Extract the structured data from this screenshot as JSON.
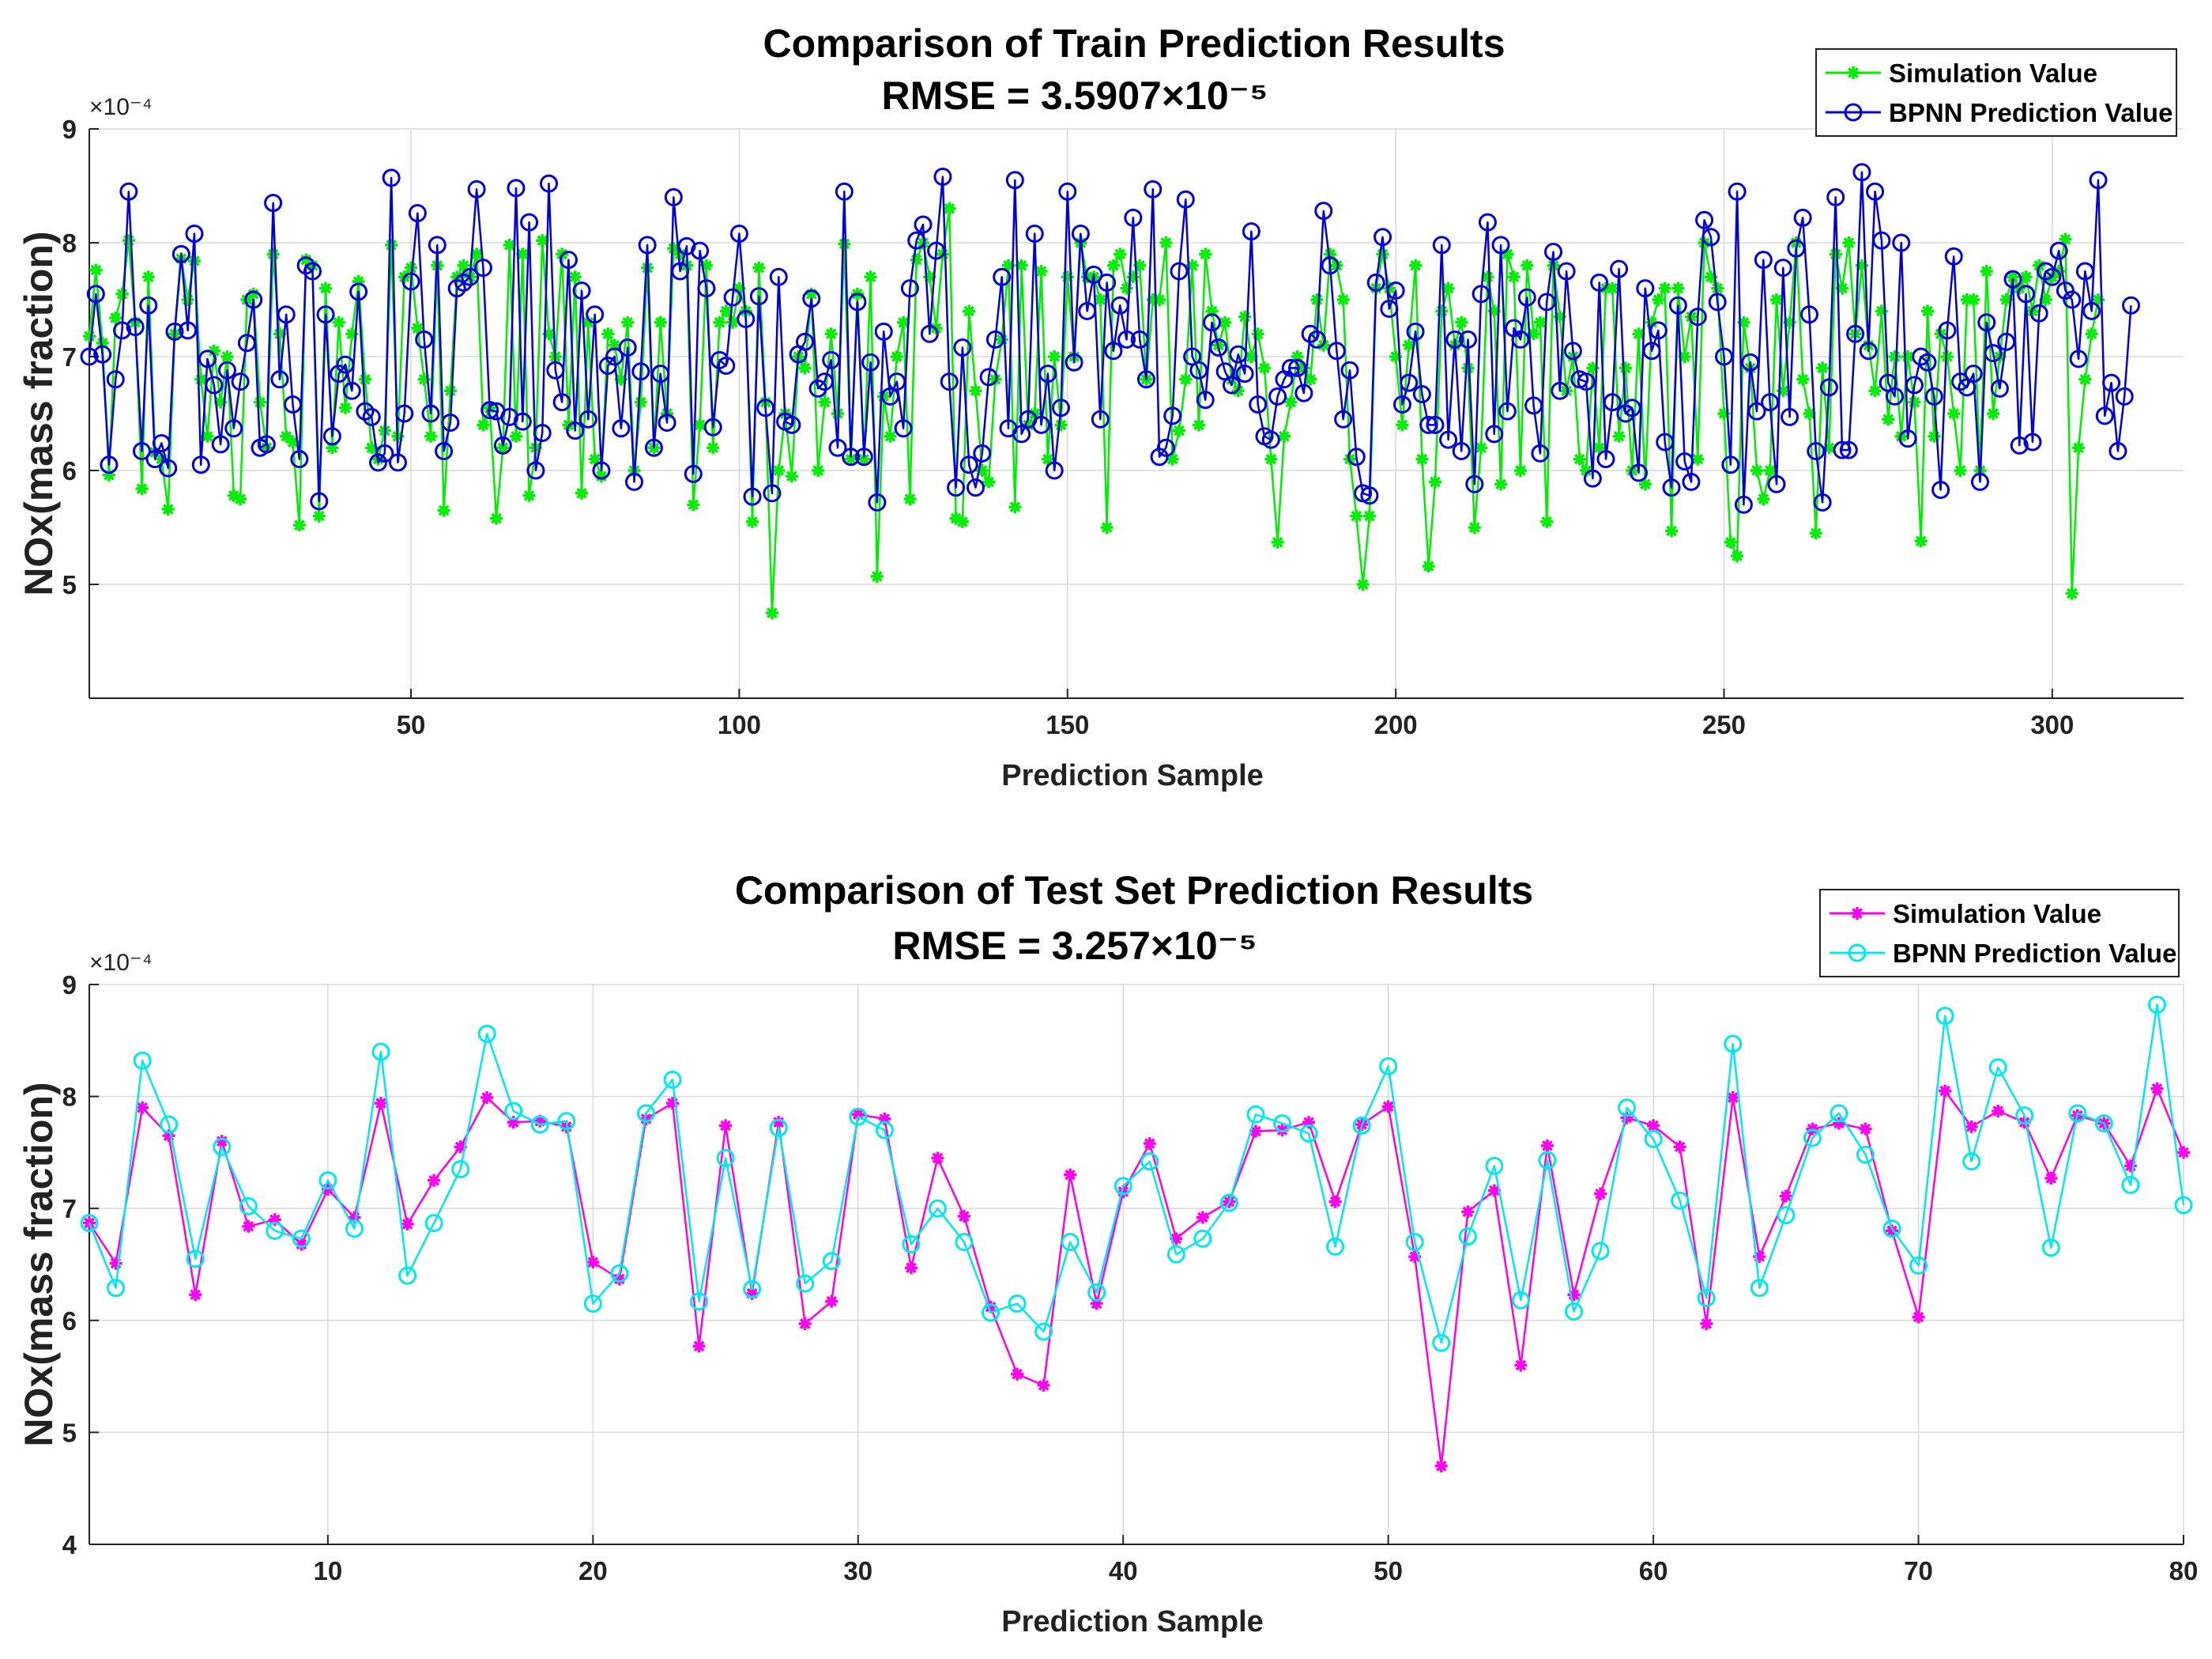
{
  "chart_data": [
    {
      "type": "line",
      "title": "Comparison of Train Prediction Results",
      "rmse_label": "RMSE =",
      "rmse_value": "3.5907×10⁻⁵",
      "xlabel": "Prediction Sample",
      "ylabel": "NOx(mass fraction)",
      "y_exponent": "×10⁻⁴",
      "xlim": [
        1,
        320
      ],
      "ylim": [
        4,
        9
      ],
      "xticks": [
        50,
        100,
        150,
        200,
        250,
        300
      ],
      "yticks": [
        5,
        6,
        7,
        8,
        9
      ],
      "grid": true,
      "legend": "top-right",
      "series": [
        {
          "name": "Simulation Value",
          "color": "#00ee00",
          "marker": "star",
          "values": [
            7.18,
            7.76,
            7.12,
            5.96,
            7.34,
            7.55,
            8.02,
            7.3,
            5.84,
            7.7,
            6.16,
            6.1,
            5.66,
            7.2,
            7.86,
            7.5,
            7.84,
            6.8,
            6.3,
            7.05,
            6.6,
            7.0,
            5.78,
            5.75,
            7.5,
            7.55,
            6.6,
            6.2,
            7.9,
            7.2,
            6.3,
            6.25,
            5.52,
            7.85,
            7.8,
            5.6,
            7.6,
            6.2,
            7.3,
            6.55,
            7.2,
            7.66,
            6.8,
            6.2,
            6.1,
            6.35,
            7.98,
            6.3,
            7.7,
            7.78,
            7.25,
            6.8,
            6.3,
            7.8,
            5.65,
            6.7,
            7.7,
            7.8,
            7.7,
            7.9,
            6.4,
            6.55,
            5.58,
            6.2,
            7.98,
            6.3,
            7.9,
            5.78,
            6.2,
            8.02,
            7.2,
            7.0,
            7.9,
            6.4,
            7.7,
            5.8,
            7.3,
            6.1,
            5.95,
            7.2,
            7.1,
            6.8,
            7.3,
            6.0,
            6.6,
            7.78,
            6.2,
            7.3,
            6.5,
            7.95,
            7.9,
            7.8,
            5.7,
            6.4,
            7.8,
            6.2,
            7.3,
            7.4,
            7.3,
            7.6,
            7.4,
            5.55,
            7.78,
            6.6,
            4.75,
            6.0,
            6.5,
            5.95,
            7.0,
            6.9,
            7.55,
            6.0,
            6.6,
            7.2,
            6.5,
            7.99,
            6.1,
            7.55,
            6.1,
            7.7,
            5.07,
            6.65,
            6.3,
            7.0,
            7.3,
            5.75,
            7.85,
            8.0,
            7.7,
            7.25,
            7.9,
            8.3,
            5.58,
            5.55,
            7.4,
            6.7,
            6.0,
            5.9,
            6.8,
            7.15,
            7.8,
            5.68,
            7.8,
            6.4,
            6.5,
            7.75,
            6.1,
            7.0,
            6.4,
            7.7,
            7.0,
            8.0,
            7.7,
            7.7,
            7.5,
            5.5,
            7.8,
            7.9,
            7.6,
            7.7,
            7.8,
            6.8,
            7.5,
            7.5,
            8.0,
            6.1,
            6.35,
            6.8,
            7.8,
            6.4,
            7.9,
            7.4,
            7.1,
            7.3,
            6.8,
            6.7,
            7.35,
            7.0,
            7.2,
            6.9,
            6.1,
            5.37,
            6.3,
            6.6,
            7.0,
            6.9,
            6.8,
            7.5,
            7.1,
            7.9,
            7.8,
            7.5,
            6.1,
            5.6,
            5.0,
            5.6,
            7.6,
            7.9,
            7.6,
            7.0,
            6.4,
            7.1,
            7.8,
            6.1,
            5.16,
            5.9,
            7.4,
            7.6,
            7.1,
            7.3,
            6.9,
            5.5,
            6.2,
            7.7,
            7.4,
            5.88,
            7.9,
            7.7,
            6.0,
            7.8,
            7.2,
            7.3,
            5.55,
            7.8,
            7.35,
            6.7,
            7.0,
            6.1,
            6.0,
            6.9,
            6.2,
            7.6,
            7.6,
            6.3,
            6.9,
            6.0,
            7.2,
            5.88,
            7.3,
            7.5,
            7.6,
            5.47,
            7.6,
            7.0,
            7.35,
            6.1,
            8.0,
            7.7,
            7.6,
            6.5,
            5.37,
            5.25,
            7.3,
            6.9,
            6.0,
            5.75,
            6.0,
            7.5,
            6.7,
            7.3,
            8.0,
            6.8,
            6.5,
            5.45,
            6.9,
            6.2,
            7.9,
            7.6,
            8.0,
            7.2,
            7.8,
            7.1,
            6.7,
            7.4,
            6.45,
            7.0,
            6.3,
            7.0,
            6.6,
            5.38,
            7.4,
            6.3,
            7.2,
            7.0,
            6.5,
            6.0,
            7.5,
            7.5,
            6.0,
            7.75,
            6.5,
            7.0,
            7.5,
            7.7,
            7.6,
            7.7,
            7.4,
            7.8,
            7.5,
            7.7,
            7.75,
            8.03,
            4.92,
            6.2,
            6.8,
            7.2,
            7.5
          ]
        },
        {
          "name": "BPNN Prediction Value",
          "color": "#0000dd",
          "marker": "circle",
          "values": [
            7.0,
            7.55,
            7.02,
            6.05,
            6.8,
            7.23,
            8.45,
            7.26,
            6.17,
            7.45,
            6.1,
            6.24,
            6.02,
            7.22,
            7.9,
            7.23,
            8.08,
            6.05,
            6.98,
            6.75,
            6.23,
            6.88,
            6.37,
            6.78,
            7.12,
            7.5,
            6.2,
            6.23,
            8.35,
            6.8,
            7.37,
            6.58,
            6.1,
            7.8,
            7.75,
            5.73,
            7.37,
            6.3,
            6.85,
            6.93,
            6.7,
            7.57,
            6.52,
            6.47,
            6.07,
            6.15,
            8.57,
            6.07,
            6.5,
            7.66,
            8.26,
            7.15,
            6.5,
            7.98,
            6.17,
            6.42,
            7.6,
            7.65,
            7.7,
            8.47,
            7.78,
            6.53,
            6.52,
            6.22,
            6.47,
            8.48,
            6.43,
            8.18,
            6.0,
            6.33,
            8.52,
            6.88,
            6.6,
            7.85,
            6.35,
            7.58,
            6.45,
            7.37,
            6.0,
            6.92,
            7.0,
            6.37,
            7.08,
            5.9,
            6.87,
            7.98,
            6.2,
            6.85,
            6.42,
            8.4,
            7.75,
            7.97,
            5.97,
            7.93,
            7.6,
            6.38,
            6.97,
            6.92,
            7.52,
            8.08,
            7.33,
            5.77,
            7.53,
            6.55,
            5.8,
            7.7,
            6.43,
            6.4,
            7.02,
            7.13,
            7.51,
            6.72,
            6.78,
            6.97,
            6.2,
            8.45,
            6.12,
            7.48,
            6.12,
            6.95,
            5.72,
            7.22,
            6.65,
            6.78,
            6.37,
            7.6,
            8.02,
            8.16,
            7.2,
            7.93,
            8.58,
            6.78,
            5.85,
            7.08,
            6.05,
            5.85,
            6.15,
            6.82,
            7.15,
            7.7,
            6.37,
            8.55,
            6.32,
            6.45,
            8.08,
            6.4,
            6.85,
            6.0,
            6.55,
            8.45,
            6.95,
            8.08,
            7.4,
            7.72,
            6.45,
            7.65,
            7.05,
            7.45,
            7.15,
            8.22,
            7.15,
            6.8,
            8.47,
            6.12,
            6.2,
            6.48,
            7.75,
            8.38,
            7.0,
            6.88,
            6.62,
            7.3,
            7.08,
            6.87,
            6.75,
            7.02,
            6.85,
            8.1,
            6.58,
            6.3,
            6.27,
            6.65,
            6.8,
            6.9,
            6.9,
            6.68,
            7.2,
            7.15,
            8.28,
            7.8,
            7.05,
            6.45,
            6.88,
            6.12,
            5.8,
            5.78,
            7.65,
            8.05,
            7.42,
            7.58,
            6.58,
            6.77,
            7.22,
            6.67,
            6.4,
            6.4,
            7.98,
            6.27,
            7.15,
            6.17,
            7.15,
            5.88,
            7.55,
            8.18,
            6.32,
            7.98,
            6.52,
            7.25,
            7.15,
            7.52,
            6.57,
            6.15,
            7.48,
            7.92,
            6.7,
            7.75,
            7.05,
            6.8,
            6.78,
            5.93,
            7.65,
            6.1,
            6.6,
            7.77,
            6.5,
            6.55,
            5.98,
            7.6,
            7.05,
            7.23,
            6.25,
            5.85,
            7.45,
            6.08,
            5.9,
            7.35,
            8.2,
            8.05,
            7.48,
            7.0,
            6.05,
            8.45,
            5.7,
            6.95,
            6.52,
            7.85,
            6.6,
            5.88,
            7.78,
            6.47,
            7.95,
            8.22,
            7.37,
            6.17,
            5.72,
            6.73,
            8.4,
            6.18,
            6.18,
            7.2,
            8.62,
            7.05,
            8.45,
            8.02,
            6.77,
            6.65,
            8.0,
            6.28,
            6.75,
            7.0,
            6.95,
            6.65,
            5.83,
            7.23,
            7.88,
            6.78,
            6.73,
            6.85,
            5.9,
            7.3,
            7.03,
            6.72,
            7.13,
            7.68,
            6.22,
            7.55,
            6.25,
            7.38,
            7.75,
            7.7,
            7.93,
            7.58,
            7.5,
            6.98,
            7.75,
            7.4,
            8.55,
            6.48,
            6.77,
            6.17,
            6.65,
            7.45
          ]
        }
      ]
    },
    {
      "type": "line",
      "title": "Comparison of Test Set Prediction Results",
      "rmse_label": "RMSE =",
      "rmse_value": "3.257×10⁻⁵",
      "xlabel": "Prediction Sample",
      "ylabel": "NOx(mass fraction)",
      "y_exponent": "×10⁻⁴",
      "xlim": [
        1,
        80
      ],
      "ylim": [
        4,
        9
      ],
      "xticks": [
        10,
        20,
        30,
        40,
        50,
        60,
        70,
        80
      ],
      "yticks": [
        4,
        5,
        6,
        7,
        8,
        9
      ],
      "grid": true,
      "legend": "top-right",
      "series": [
        {
          "name": "Simulation Value",
          "color": "#ff00ee",
          "marker": "star",
          "values": [
            6.87,
            6.51,
            7.9,
            7.65,
            6.23,
            7.6,
            6.84,
            6.9,
            6.68,
            7.17,
            6.92,
            7.94,
            6.86,
            7.25,
            7.55,
            7.99,
            7.77,
            7.78,
            7.73,
            6.52,
            6.37,
            7.8,
            7.94,
            5.77,
            7.74,
            6.24,
            7.77,
            5.97,
            6.17,
            7.84,
            7.8,
            6.47,
            7.45,
            6.93,
            6.12,
            5.52,
            5.42,
            7.3,
            6.15,
            7.15,
            7.58,
            6.73,
            6.92,
            7.06,
            7.69,
            7.7,
            7.77,
            7.06,
            7.75,
            7.91,
            6.57,
            4.7,
            6.97,
            7.16,
            5.6,
            7.56,
            6.23,
            7.13,
            7.81,
            7.74,
            7.55,
            5.97,
            7.99,
            6.57,
            7.11,
            7.71,
            7.76,
            7.71,
            6.8,
            6.03,
            8.05,
            7.73,
            7.87,
            7.77,
            7.27,
            7.83,
            7.76,
            7.38,
            8.07,
            7.5
          ]
        },
        {
          "name": "BPNN Prediction Value",
          "color": "#00e8f0",
          "marker": "circle",
          "values": [
            6.87,
            6.29,
            8.32,
            7.75,
            6.55,
            7.55,
            7.02,
            6.8,
            6.73,
            7.25,
            6.82,
            8.4,
            6.4,
            6.87,
            7.35,
            8.56,
            7.87,
            7.75,
            7.78,
            6.15,
            6.42,
            7.85,
            8.15,
            6.17,
            7.45,
            6.28,
            7.72,
            6.33,
            6.53,
            7.82,
            7.7,
            6.68,
            7.0,
            6.7,
            6.07,
            6.15,
            5.9,
            6.7,
            6.25,
            7.2,
            7.42,
            6.59,
            6.73,
            7.05,
            7.84,
            7.76,
            7.67,
            6.66,
            7.74,
            8.27,
            6.7,
            5.8,
            6.75,
            7.38,
            6.18,
            7.43,
            6.08,
            6.62,
            7.9,
            7.62,
            7.07,
            6.2,
            8.47,
            6.29,
            6.94,
            7.63,
            7.85,
            7.48,
            6.82,
            6.49,
            8.72,
            7.42,
            8.26,
            7.83,
            6.65,
            7.85,
            7.76,
            7.21,
            8.82,
            7.03
          ]
        }
      ]
    }
  ]
}
